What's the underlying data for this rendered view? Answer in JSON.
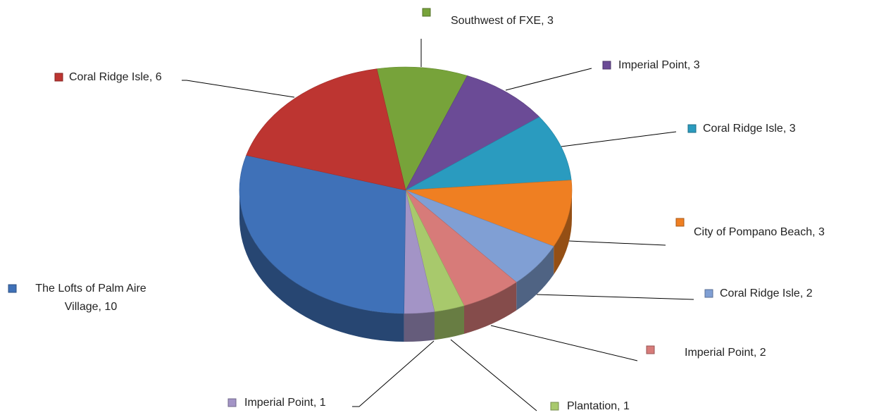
{
  "chart_data": {
    "type": "pie3d",
    "values": [
      3,
      3,
      3,
      3,
      2,
      2,
      1,
      1,
      10,
      6
    ],
    "value_labels": [
      "Southwest of FXE, 3",
      "Imperial Point, 3",
      "Coral Ridge Isle, 3",
      "City of Pompano Beach, 3",
      "Coral Ridge Isle, 2",
      "Imperial Point, 2",
      "Plantation, 1",
      "Imperial Point, 1",
      "The Lofts of Palm Aire Village, 10",
      "Coral Ridge Isle, 6"
    ],
    "colors": [
      "#77a33a",
      "#6b4b96",
      "#2a9bbf",
      "#ef7f22",
      "#809fd4",
      "#d77b79",
      "#a8c96c",
      "#a394c6",
      "#3f71b8",
      "#bd3531"
    ]
  }
}
